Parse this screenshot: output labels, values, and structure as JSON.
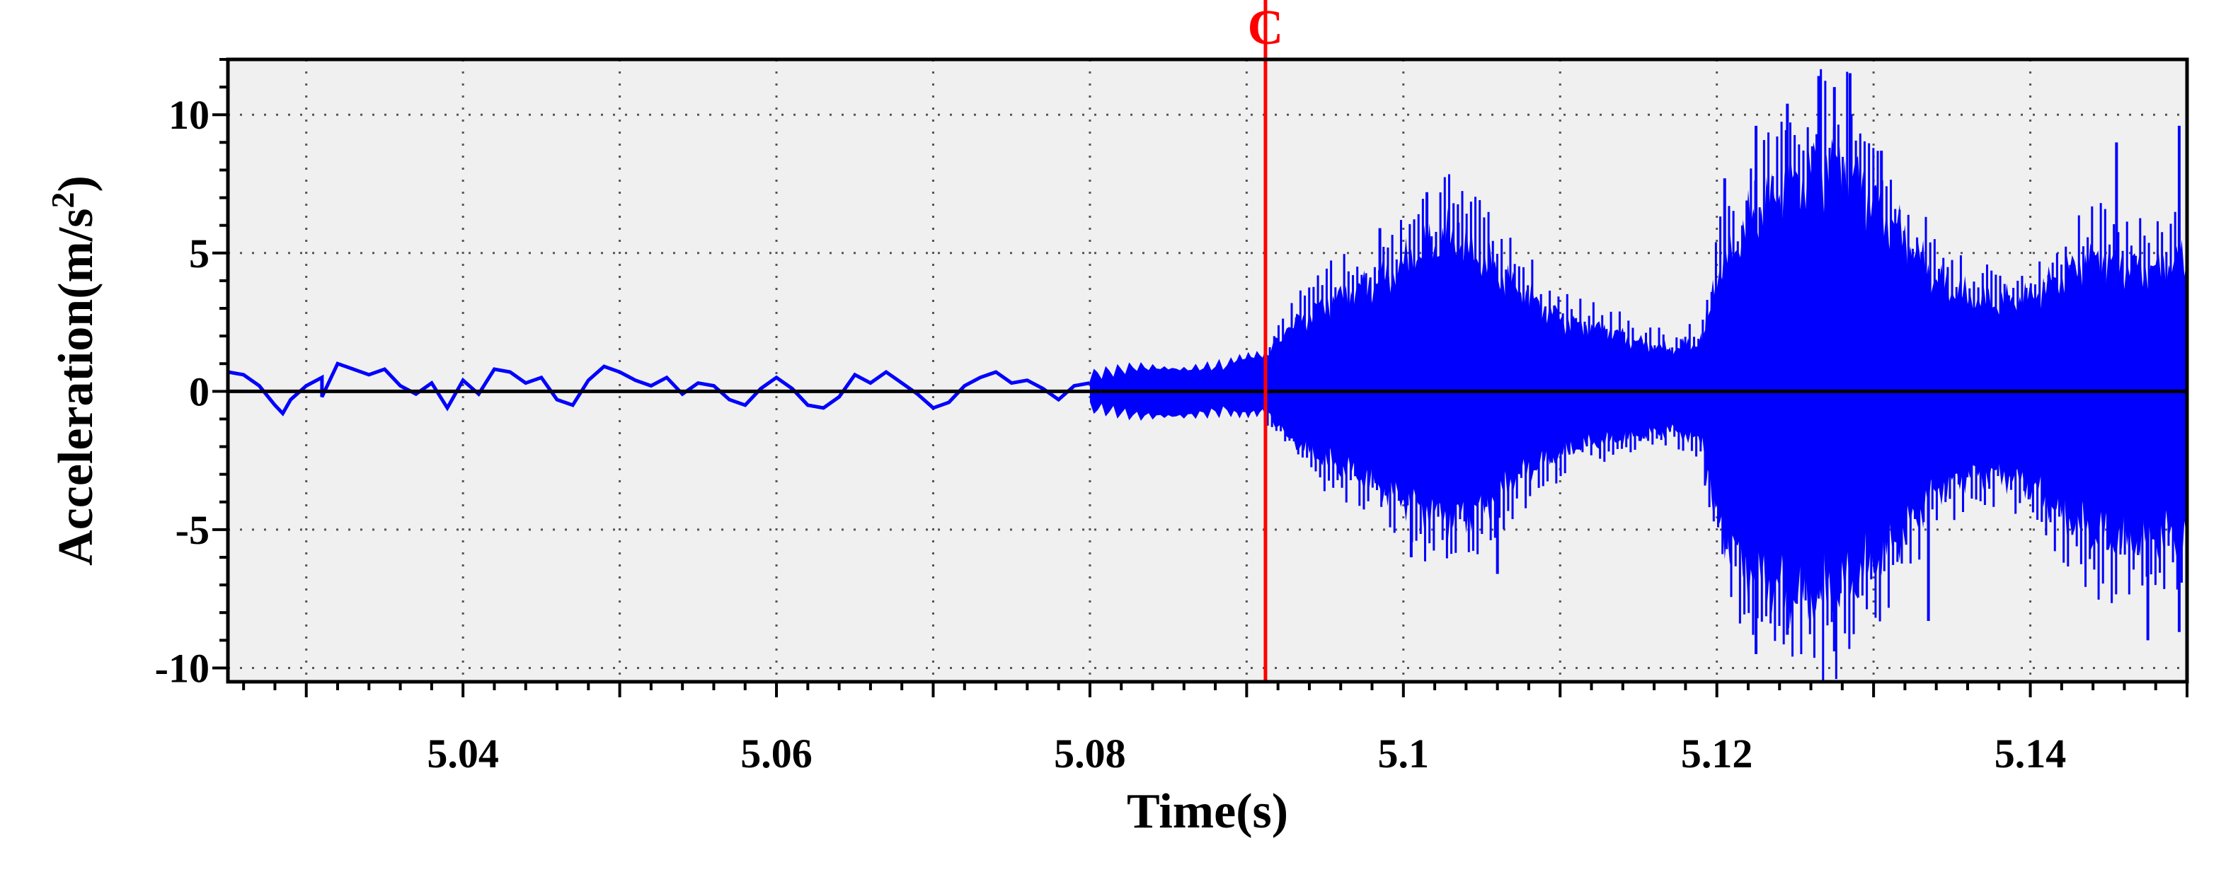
{
  "chart_data": {
    "type": "line",
    "title": "",
    "xlabel": "Time(s)",
    "ylabel_main": "Acceleration(m/s",
    "ylabel_sup": "2",
    "ylabel_close": ")",
    "xlim": [
      5.025,
      5.15
    ],
    "ylim": [
      -10.5,
      12
    ],
    "xticks": [
      5.04,
      5.06,
      5.08,
      5.1,
      5.12,
      5.14
    ],
    "xtick_labels": [
      "5.04",
      "5.06",
      "5.08",
      "5.1",
      "5.12",
      "5.14"
    ],
    "yticks": [
      -10,
      -5,
      0,
      5,
      10
    ],
    "ytick_labels": [
      "-10",
      "-5",
      "0",
      "5",
      "10"
    ],
    "grid": true,
    "grid_style": "dotted",
    "plot_background": "#f0f0f0",
    "series": [
      {
        "color": "#0000ff",
        "low_freq_points": [
          [
            5.025,
            0.7
          ],
          [
            5.026,
            0.6
          ],
          [
            5.027,
            0.2
          ],
          [
            5.028,
            -0.5
          ],
          [
            5.0285,
            -0.8
          ],
          [
            5.029,
            -0.3
          ],
          [
            5.03,
            0.2
          ],
          [
            5.031,
            0.5
          ],
          [
            5.031,
            -0.2
          ],
          [
            5.032,
            1.0
          ],
          [
            5.033,
            0.8
          ],
          [
            5.034,
            0.6
          ],
          [
            5.035,
            0.8
          ],
          [
            5.036,
            0.2
          ],
          [
            5.037,
            -0.1
          ],
          [
            5.038,
            0.3
          ],
          [
            5.039,
            -0.6
          ],
          [
            5.04,
            0.4
          ],
          [
            5.041,
            -0.1
          ],
          [
            5.042,
            0.8
          ],
          [
            5.043,
            0.7
          ],
          [
            5.044,
            0.3
          ],
          [
            5.045,
            0.5
          ],
          [
            5.046,
            -0.3
          ],
          [
            5.047,
            -0.5
          ],
          [
            5.048,
            0.4
          ],
          [
            5.049,
            0.9
          ],
          [
            5.05,
            0.7
          ],
          [
            5.051,
            0.4
          ],
          [
            5.052,
            0.2
          ],
          [
            5.053,
            0.5
          ],
          [
            5.054,
            -0.1
          ],
          [
            5.055,
            0.3
          ],
          [
            5.056,
            0.2
          ],
          [
            5.057,
            -0.3
          ],
          [
            5.058,
            -0.5
          ],
          [
            5.059,
            0.1
          ],
          [
            5.06,
            0.5
          ],
          [
            5.061,
            0.1
          ],
          [
            5.062,
            -0.5
          ],
          [
            5.063,
            -0.6
          ],
          [
            5.064,
            -0.2
          ],
          [
            5.065,
            0.6
          ],
          [
            5.066,
            0.3
          ],
          [
            5.067,
            0.7
          ],
          [
            5.068,
            0.3
          ],
          [
            5.069,
            -0.1
          ],
          [
            5.07,
            -0.6
          ],
          [
            5.071,
            -0.4
          ],
          [
            5.072,
            0.2
          ],
          [
            5.073,
            0.5
          ],
          [
            5.074,
            0.7
          ],
          [
            5.075,
            0.3
          ],
          [
            5.076,
            0.4
          ],
          [
            5.077,
            0.1
          ],
          [
            5.078,
            -0.3
          ],
          [
            5.079,
            0.2
          ],
          [
            5.08,
            0.3
          ]
        ],
        "envelope": [
          [
            5.08,
            0.6,
            -0.6
          ],
          [
            5.083,
            0.9,
            -0.9
          ],
          [
            5.086,
            0.8,
            -0.9
          ],
          [
            5.089,
            1.0,
            -0.7
          ],
          [
            5.0912,
            1.4,
            -0.8
          ],
          [
            5.093,
            2.4,
            -1.8
          ],
          [
            5.095,
            3.2,
            -2.5
          ],
          [
            5.097,
            3.6,
            -3.0
          ],
          [
            5.099,
            4.2,
            -3.6
          ],
          [
            5.101,
            5.0,
            -4.2
          ],
          [
            5.103,
            5.6,
            -4.6
          ],
          [
            5.105,
            4.8,
            -4.2
          ],
          [
            5.107,
            3.8,
            -3.2
          ],
          [
            5.109,
            3.0,
            -2.5
          ],
          [
            5.111,
            2.4,
            -2.0
          ],
          [
            5.113,
            2.2,
            -1.8
          ],
          [
            5.115,
            1.8,
            -1.6
          ],
          [
            5.117,
            1.5,
            -1.4
          ],
          [
            5.119,
            1.8,
            -1.8
          ],
          [
            5.12,
            4.2,
            -4.6
          ],
          [
            5.122,
            6.0,
            -6.5
          ],
          [
            5.124,
            7.2,
            -7.2
          ],
          [
            5.126,
            8.0,
            -7.4
          ],
          [
            5.128,
            8.2,
            -7.2
          ],
          [
            5.13,
            7.0,
            -6.2
          ],
          [
            5.132,
            5.5,
            -5.0
          ],
          [
            5.134,
            4.0,
            -3.6
          ],
          [
            5.136,
            3.4,
            -3.0
          ],
          [
            5.138,
            3.2,
            -3.0
          ],
          [
            5.14,
            3.4,
            -3.4
          ],
          [
            5.142,
            4.2,
            -4.4
          ],
          [
            5.144,
            4.8,
            -5.2
          ],
          [
            5.146,
            4.6,
            -5.4
          ],
          [
            5.148,
            4.4,
            -5.2
          ],
          [
            5.15,
            4.8,
            -5.4
          ]
        ],
        "spikes": [
          [
            5.1015,
            7.2
          ],
          [
            5.1035,
            6.1
          ],
          [
            5.0985,
            5.9
          ],
          [
            5.1005,
            -6.0
          ],
          [
            5.106,
            -6.6
          ],
          [
            5.1205,
            7.7
          ],
          [
            5.1225,
            9.6
          ],
          [
            5.1245,
            10.4
          ],
          [
            5.1265,
            11.4
          ],
          [
            5.1275,
            11.0
          ],
          [
            5.1285,
            11.5
          ],
          [
            5.1305,
            8.7
          ],
          [
            5.1225,
            -9.5
          ],
          [
            5.1245,
            -8.8
          ],
          [
            5.1275,
            -9.4
          ],
          [
            5.1455,
            9.0
          ],
          [
            5.1495,
            9.6
          ],
          [
            5.1475,
            -9.0
          ],
          [
            5.1495,
            -8.7
          ],
          [
            5.1335,
            -8.3
          ]
        ]
      }
    ],
    "zero_line_color": "#000000",
    "marker": {
      "label": "C",
      "x": 5.0912,
      "color": "#ff0000"
    }
  }
}
